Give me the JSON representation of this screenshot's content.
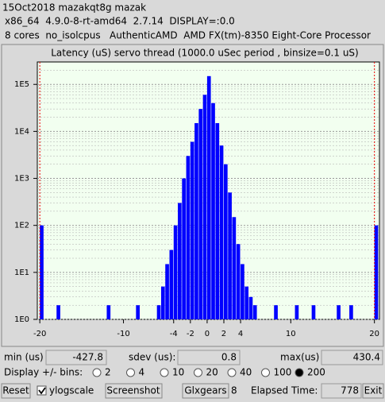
{
  "header": {
    "line1": "15Oct2018 mazakqt8g mazak",
    "line2": "x86_64  4.9.0-8-rt-amd64  2.7.14  DISPLAY=:0.0",
    "line3": "8 cores  no_isolcpus   AuthenticAMD  AMD FX(tm)-8350 Eight-Core Processor"
  },
  "chart_data": {
    "type": "histogram",
    "title": "Latency (uS) servo thread (1000.0 uSec period , binsize=0.1 uS)",
    "bins": [
      -20,
      -19.5,
      -19,
      -18.5,
      -18,
      -17.5,
      -17,
      -16.5,
      -16,
      -15.5,
      -15,
      -14.5,
      -14,
      -13.5,
      -13,
      -12.5,
      -12,
      -11.5,
      -11,
      -10.5,
      -10,
      -9.5,
      -9,
      -8.5,
      -8,
      -7.5,
      -7,
      -6.5,
      -6,
      -5.5,
      -5,
      -4.5,
      -4,
      -3.5,
      -3,
      -2.5,
      -2,
      -1.5,
      -1,
      -0.5,
      0,
      0.5,
      1,
      1.5,
      2,
      2.5,
      3,
      3.5,
      4,
      4.5,
      5,
      5.5,
      6,
      6.5,
      7,
      7.5,
      8,
      8.5,
      9,
      9.5,
      10,
      10.5,
      11,
      11.5,
      12,
      12.5,
      13,
      13.5,
      14,
      14.5,
      15,
      15.5,
      16,
      16.5,
      17,
      17.5,
      18,
      18.5,
      19,
      19.5,
      20,
      20.5
    ],
    "counts": [
      100,
      0,
      0,
      0,
      2,
      0,
      0,
      0,
      0,
      0,
      0,
      0,
      0,
      0,
      0,
      0,
      2,
      0,
      0,
      0,
      0,
      0,
      0,
      2,
      0,
      0,
      0,
      0,
      2,
      5,
      15,
      30,
      100,
      300,
      1000,
      3000,
      6000,
      15000,
      30000,
      60000,
      150000,
      40000,
      15000,
      5000,
      2000,
      500,
      150,
      40,
      15,
      5,
      3,
      2,
      0,
      0,
      0,
      0,
      2,
      0,
      0,
      0,
      0,
      2,
      0,
      0,
      0,
      2,
      0,
      0,
      0,
      0,
      0,
      2,
      0,
      0,
      2,
      0,
      0,
      0,
      0,
      0,
      100
    ],
    "color": "#0000ff",
    "xlim": [
      -20.3,
      20.6
    ],
    "xticks": [
      -20,
      -10,
      -4,
      -2,
      0,
      2,
      4,
      10,
      20
    ],
    "ylim": [
      1,
      300000
    ],
    "yticks": [
      {
        "value": 1,
        "label": "1E0"
      },
      {
        "value": 10,
        "label": "1E1"
      },
      {
        "value": 100,
        "label": "1E2"
      },
      {
        "value": 1000,
        "label": "1E3"
      },
      {
        "value": 10000,
        "label": "1E4"
      },
      {
        "value": 100000,
        "label": "1E5"
      }
    ],
    "log_scale": true,
    "grid": true
  },
  "stats": {
    "min_label": "min (us)",
    "min_value": "-427.8",
    "sdev_label": "sdev (us):",
    "sdev_value": "0.8",
    "max_label": "max(us)",
    "max_value": "430.4"
  },
  "display": {
    "label": "Display +/- bins:",
    "options": [
      "2",
      "4",
      "10",
      "20",
      "40",
      "100",
      "200"
    ],
    "selected": 6
  },
  "buttons": {
    "reset": "Reset",
    "ylogscale": "ylogscale",
    "screenshot": "Screenshot",
    "glxgears": "Glxgears",
    "glxgears_count": "8",
    "elapsed_label": "Elapsed Time:",
    "elapsed_value": "778",
    "exit": "Exit"
  }
}
